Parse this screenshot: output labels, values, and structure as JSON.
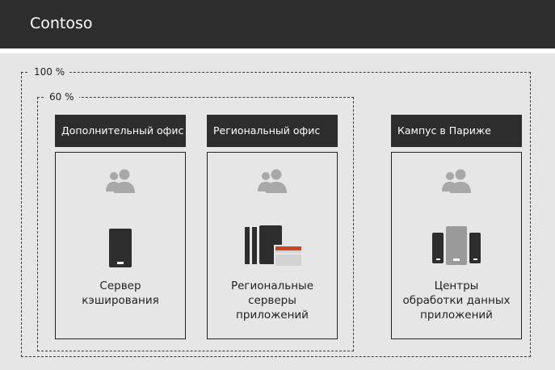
{
  "header": {
    "brand": "Contoso"
  },
  "zones": {
    "outer_label": "100 %",
    "inner_label": "60 %"
  },
  "sites": [
    {
      "title": "Дополнительный офис",
      "line1": "Сервер",
      "line2": "кэширования",
      "line3": "",
      "users_icon": "users-icon",
      "server_icon": "mobile-server-icon"
    },
    {
      "title": "Региональный офис",
      "line1": "Региональные",
      "line2": "серверы",
      "line3": "приложений",
      "users_icon": "users-icon",
      "server_icon": "app-servers-icon"
    },
    {
      "title": "Кампус в Париже",
      "line1": "Центры",
      "line2": "обработки данных",
      "line3": "приложений",
      "users_icon": "users-icon",
      "server_icon": "datacenter-icon"
    }
  ],
  "colors": {
    "dark": "#2d2d2d",
    "bg": "#e6e6e6",
    "icon_gray": "#a8a8a8",
    "accent": "#d04423"
  }
}
